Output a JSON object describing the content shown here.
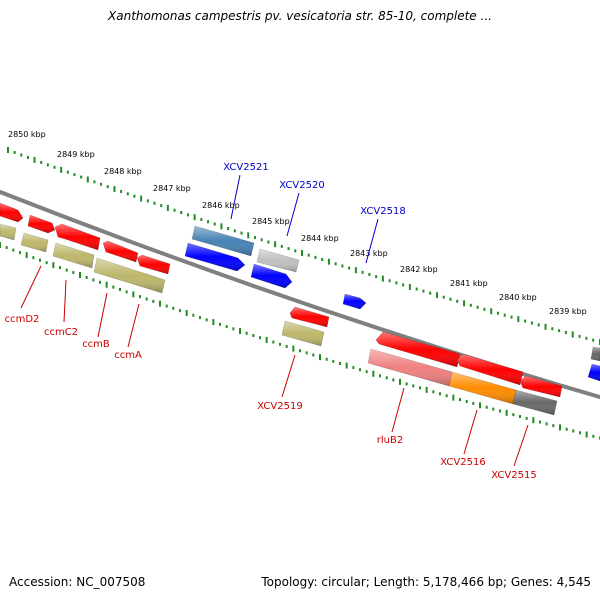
{
  "title": "Xanthomonas campestris pv. vesicatoria str. 85-10, complete ...",
  "footer": {
    "accession": "Accession: NC_007508",
    "summary": "Topology: circular; Length: 5,178,466 bp; Genes: 4,545"
  },
  "colors": {
    "backbone": "#808080",
    "tick": "#228B22",
    "scale_text": "#000000",
    "label_plus": "#0000CC",
    "label_minus": "#CC0000"
  },
  "scale_labels": [
    "2850 kbp",
    "2849 kbp",
    "2848 kbp",
    "2847 kbp",
    "2846 kbp",
    "2845 kbp",
    "2844 kbp",
    "2843 kbp",
    "2842 kbp",
    "2841 kbp",
    "2840 kbp",
    "2839 kbp"
  ],
  "genes": [
    {
      "id": "g1",
      "name": "",
      "color": "#ff0000",
      "strand": "minus-outer"
    },
    {
      "id": "g2",
      "name": "",
      "color": "#ff0000",
      "strand": "minus-outer"
    },
    {
      "id": "g3",
      "name": "",
      "color": "#ff0000",
      "strand": "minus-outer"
    },
    {
      "id": "g4",
      "name": "",
      "color": "#ff0000",
      "strand": "minus-outer"
    },
    {
      "id": "g5",
      "name": "",
      "color": "#ff0000",
      "strand": "minus-outer"
    },
    {
      "id": "g6",
      "name": "",
      "color": "#bdb76b",
      "strand": "minus-inner"
    },
    {
      "id": "g7",
      "name": "",
      "color": "#bdb76b",
      "strand": "minus-inner"
    },
    {
      "id": "g8",
      "name": "",
      "color": "#bdb76b",
      "strand": "minus-inner"
    },
    {
      "id": "g9",
      "name": "",
      "color": "#bdb76b",
      "strand": "minus-inner"
    },
    {
      "id": "g10",
      "name": "",
      "color": "#4682b4",
      "strand": "plus-outer"
    },
    {
      "id": "g11",
      "name": "",
      "color": "#0000ff",
      "strand": "plus-inner"
    },
    {
      "id": "g12",
      "name": "",
      "color": "#c0c0c0",
      "strand": "plus-outer"
    },
    {
      "id": "g13",
      "name": "",
      "color": "#0000ff",
      "strand": "plus-inner"
    },
    {
      "id": "g14",
      "name": "",
      "color": "#0000ff",
      "strand": "plus-inner"
    },
    {
      "id": "g15",
      "name": "",
      "color": "#ff0000",
      "strand": "minus-outer"
    },
    {
      "id": "g16",
      "name": "",
      "color": "#bdb76b",
      "strand": "minus-inner"
    },
    {
      "id": "g17",
      "name": "",
      "color": "#ff0000",
      "strand": "minus-outer"
    },
    {
      "id": "g18",
      "name": "",
      "color": "#ff0000",
      "strand": "minus-outer"
    },
    {
      "id": "g19",
      "name": "",
      "color": "#ff0000",
      "strand": "minus-outer"
    },
    {
      "id": "g20",
      "name": "",
      "color": "#f08080",
      "strand": "minus-inner"
    },
    {
      "id": "g21",
      "name": "",
      "color": "#ff8c00",
      "strand": "minus-inner"
    },
    {
      "id": "g22",
      "name": "",
      "color": "#696969",
      "strand": "minus-inner"
    },
    {
      "id": "g23",
      "name": "",
      "color": "#696969",
      "strand": "plus-outer"
    },
    {
      "id": "g24",
      "name": "",
      "color": "#0000ff",
      "strand": "plus-inner"
    }
  ],
  "gene_labels": [
    {
      "text": "XCV2521",
      "strand": "plus"
    },
    {
      "text": "XCV2520",
      "strand": "plus"
    },
    {
      "text": "XCV2518",
      "strand": "plus"
    },
    {
      "text": "ccmD2",
      "strand": "minus"
    },
    {
      "text": "ccmC2",
      "strand": "minus"
    },
    {
      "text": "ccmB",
      "strand": "minus"
    },
    {
      "text": "ccmA",
      "strand": "minus"
    },
    {
      "text": "XCV2519",
      "strand": "minus"
    },
    {
      "text": "rluB2",
      "strand": "minus"
    },
    {
      "text": "XCV2516",
      "strand": "minus"
    },
    {
      "text": "XCV2515",
      "strand": "minus"
    }
  ]
}
